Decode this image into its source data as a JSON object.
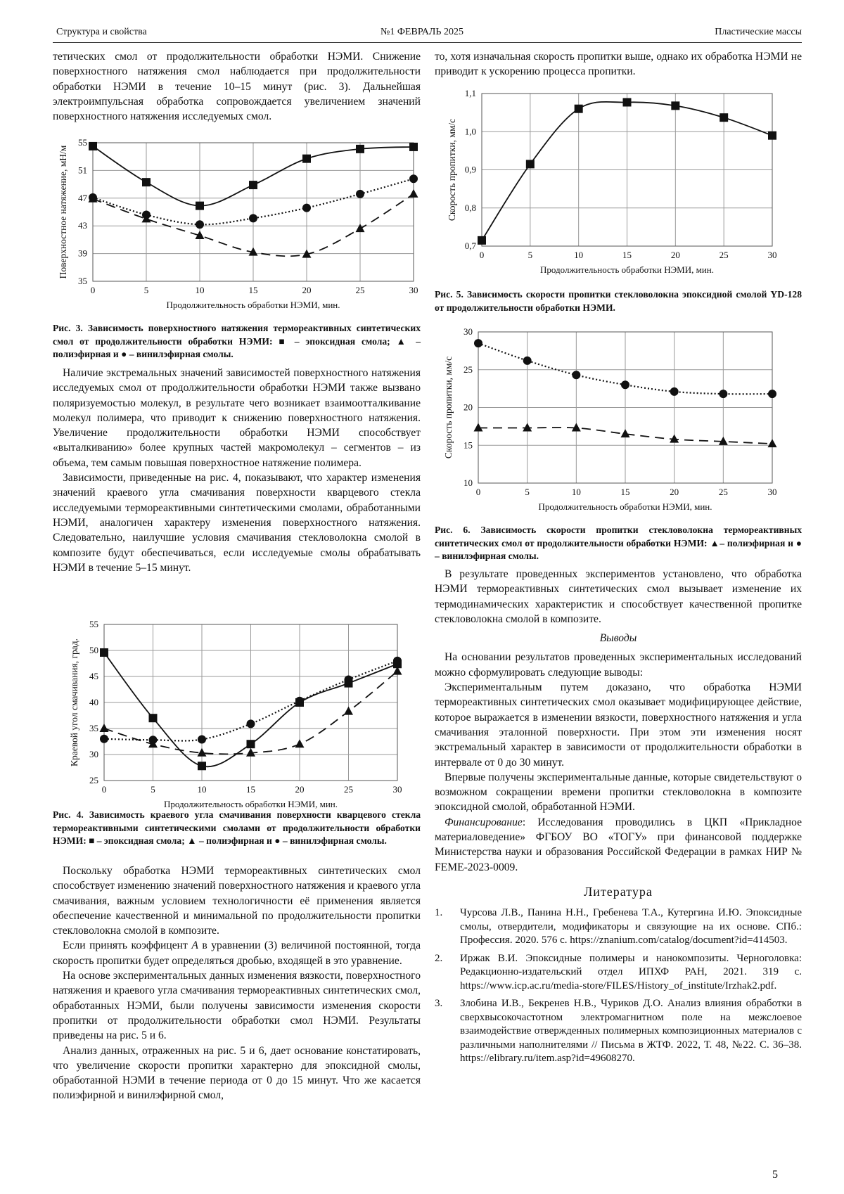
{
  "header": {
    "section": "Структура и свойства",
    "issue": "№1  ФЕВРАЛЬ 2025",
    "journal": "Пластические массы"
  },
  "left_top": "тетических смол от продолжительности обработки НЭМИ. Снижение поверхностного натяжения смол наблюдается при продолжительности обработки НЭМИ в течение 10–15 минут (рис. 3). Дальнейшая электроимпульсная обработка сопровождается увеличением значений поверхностного натяжения исследуемых смол.",
  "left_middle": [
    "Наличие экстремальных значений зависимостей поверхностного натяжения исследуемых смол от продолжительности обработки НЭМИ также вызвано поляризуемостью молекул, в результате чего возникает взаимоотталкивание молекул полимера, что приводит к снижению поверхностного натяжения. Увеличение продолжительности обработки НЭМИ способствует «выталкиванию» более крупных частей макромолекул – сегментов – из объема, тем самым повышая поверхностное натяжение полимера.",
    "Зависимости, приведенные на рис. 4, показывают, что характер изменения значений краевого угла смачивания поверхности кварцевого стекла исследуемыми термореактивными синтетическими смолами, обработанными НЭМИ, аналогичен характеру изменения поверхностного натяжения. Следовательно, наилучшие условия смачивания стекловолокна смолой в композите будут обеспечиваться, если исследуемые смолы обрабатывать НЭМИ в течение 5–15 минут."
  ],
  "left_bottom": {
    "p1": "Поскольку обработка НЭМИ термореактивных синтетических смол способствует изменению значений поверхностного натяжения и краевого угла смачивания, важным условием технологичности её применения является обеспечение качественной и минимальной по продолжительности пропитки стекловолокна смолой в композите.",
    "p2": {
      "before": "Если принять коэффицент ",
      "symbol": "A",
      "after": " в уравнении (3) величиной постоянной, тогда скорость пропитки будет определяться дробью, входящей в это уравнение."
    },
    "p3": "На основе экспериментальных данных изменения вязкости, поверхностного натяжения и краевого угла смачивания термореактивных синтетических смол, обработанных НЭМИ, были получены зависимости изменения скорости пропитки от продолжительности обработки смол НЭМИ. Результаты приведены на рис. 5 и 6.",
    "p4": "Анализ данных, отраженных на рис. 5 и 6, дает основание констатировать, что увеличение скорости пропитки характерно для эпоксидной смолы, обработанной НЭМИ в течение периода от 0 до 15 минут. Что же касается полиэфирной и винилэфирной смол,"
  },
  "right_top": "то, хотя изначальная скорость пропитки выше, однако их обработка НЭМИ не приводит к ускорению процесса пропитки.",
  "right_bottom": {
    "p1": "В результате проведенных экспериментов установлено, что обработка НЭМИ термореактивных синтетических смол вызывает изменение их термодинамических характеристик и способствует качественной пропитке стекловолокна смолой в композите.",
    "conclusions_heading": "Выводы",
    "p2": "На основании результатов проведенных экспериментальных исследований можно сформулировать следующие выводы:",
    "p3": "Экспериментальным путем доказано, что обработка НЭМИ термореактивных синтетических смол оказывает модифицирующее действие, которое выражается в изменении вязкости, поверхностного натяжения и угла смачивания эталонной поверхности. При этом эти изменения носят экстремальный характер в зависимости от продолжительности обработки в интервале от 0 до 30 минут.",
    "p4": "Впервые получены экспериментальные данные, которые свидетельствуют о возможном сокращении времени пропитки стекловолокна в композите эпоксидной смолой, обработанной НЭМИ.",
    "funding": {
      "label": "Финансирование",
      "text": ": Исследования проводились в ЦКП «Прикладное материаловедение» ФГБОУ ВО «ТОГУ» при финансовой поддержке Министерства науки и образования Российской Федерации в рамках НИР № FEME-2023-0009."
    },
    "references_heading": "Литература",
    "references": [
      {
        "number": "1.",
        "text": "Чурсова Л.В., Панина Н.Н., Гребенева Т.А., Кутергина И.Ю. Эпоксидные смолы, отвердители, модификаторы и связующие на их основе. СПб.: Профессия. 2020. 576 с. https://znanium.com/catalog/document?id=414503."
      },
      {
        "number": "2.",
        "text": "Иржак В.И. Эпоксидные полимеры и нанокомпозиты. Черноголовка: Редакционно-издательский отдел ИПХФ РАН, 2021. 319 с. https://www.icp.ac.ru/media-store/FILES/History_of_institute/Irzhak2.pdf."
      },
      {
        "number": "3.",
        "text": "Злобина И.В., Бекренев Н.В., Чуриков Д.О. Анализ влияния обработки в сверхвысокочастотном электромагнитном поле на межслоевое взаимодействие отвержденных полимерных композиционных материалов с различными наполнителями // Письма в ЖТФ. 2022, Т. 48, №22. С. 36–38. https://elibrary.ru/item.asp?id=49608270."
      }
    ]
  },
  "page_number": "5",
  "chart_data": [
    {
      "type": "line",
      "ylabel": "Поверхностное натяжение, мН/м",
      "xlabel": "Продолжительность обработки НЭМИ, мин.",
      "caption": "Рис. 3. Зависимость поверхностного натяжения термореактивных синтетических смол от продолжительности обработки НЭМИ: ■ – эпоксидная смола; ▲ – полиэфирная и ● – винилэфирная смолы.",
      "x": [
        0,
        5,
        10,
        15,
        20,
        25,
        30
      ],
      "xlim": [
        0,
        30
      ],
      "xticks": [
        0,
        5,
        10,
        15,
        20,
        25,
        30
      ],
      "ylim": [
        35,
        55
      ],
      "yticks": [
        35,
        39,
        43,
        47,
        51,
        55
      ],
      "grid": true,
      "series": [
        {
          "marker": "square",
          "line_style": "solid",
          "color": "#111111",
          "values": [
            54.5,
            49.3,
            45.9,
            48.9,
            52.7,
            54.1,
            54.4
          ]
        },
        {
          "marker": "circle",
          "line_style": "dotted",
          "color": "#111111",
          "values": [
            47.1,
            44.6,
            43.2,
            44.1,
            45.6,
            47.6,
            49.8
          ]
        },
        {
          "marker": "triangle",
          "line_style": "dashed",
          "color": "#111111",
          "values": [
            46.9,
            44.0,
            41.6,
            39.2,
            38.9,
            42.6,
            47.6
          ]
        }
      ]
    },
    {
      "type": "line",
      "ylabel": "Краевой угол смачивания, град.",
      "xlabel": "Продолжительность обработки НЭМИ, мин.",
      "caption": "Рис. 4. Зависимость краевого угла смачивания поверхности кварцевого стекла термореактивными синтетическими смолами от продолжительности обработки НЭМИ: ■ – эпоксидная смола; ▲ – полиэфирная и ● – винилэфирная смолы.",
      "x": [
        0,
        5,
        10,
        15,
        20,
        25,
        30
      ],
      "xlim": [
        0,
        30
      ],
      "xticks": [
        0,
        5,
        10,
        15,
        20,
        25,
        30
      ],
      "ylim": [
        25,
        55
      ],
      "yticks": [
        25,
        30,
        35,
        40,
        45,
        50,
        55
      ],
      "grid": true,
      "series": [
        {
          "marker": "square",
          "line_style": "solid",
          "color": "#111111",
          "values": [
            49.6,
            37.0,
            27.8,
            32.0,
            40.0,
            43.7,
            47.4
          ]
        },
        {
          "marker": "circle",
          "line_style": "dotted",
          "color": "#111111",
          "values": [
            33.0,
            32.8,
            32.9,
            35.9,
            40.3,
            44.4,
            48.0
          ]
        },
        {
          "marker": "triangle",
          "line_style": "dashed",
          "color": "#111111",
          "values": [
            35.0,
            32.0,
            30.3,
            30.3,
            32.0,
            38.3,
            46.0
          ]
        }
      ]
    },
    {
      "type": "line",
      "ylabel": "Скорость пропитки, мм/с",
      "xlabel": "Продолжительность обработки НЭМИ, мин.",
      "caption": "Рис. 5. Зависимость скорости пропитки стекловолокна эпоксидной смолой YD-128 от продолжительности обработки НЭМИ.",
      "x": [
        0,
        5,
        10,
        15,
        20,
        25,
        30
      ],
      "xlim": [
        0,
        30
      ],
      "xticks": [
        0,
        5,
        10,
        15,
        20,
        25,
        30
      ],
      "ylim": [
        0.7,
        1.1
      ],
      "yticks": [
        {
          "value": 0.7,
          "label": "0,7"
        },
        {
          "value": 0.8,
          "label": "0,8"
        },
        {
          "value": 0.9,
          "label": "0,9"
        },
        {
          "value": 1.0,
          "label": "1,0"
        },
        {
          "value": 1.1,
          "label": "1,1"
        }
      ],
      "grid": true,
      "series": [
        {
          "marker": "square",
          "line_style": "solid",
          "color": "#111111",
          "values": [
            0.715,
            0.915,
            1.06,
            1.077,
            1.068,
            1.037,
            0.99
          ]
        }
      ]
    },
    {
      "type": "line",
      "ylabel": "Скорость пропитки, мм/с",
      "xlabel": "Продолжительность обработки НЭМИ, мин.",
      "caption": "Рис. 6. Зависимость скорости пропитки стекловолокна термореактивных синтетических смол от продолжительности обработки НЭМИ: ▲– полиэфирная и ● – винилэфирная смолы.",
      "x": [
        0,
        5,
        10,
        15,
        20,
        25,
        30
      ],
      "xlim": [
        0,
        30
      ],
      "xticks": [
        0,
        5,
        10,
        15,
        20,
        25,
        30
      ],
      "ylim": [
        10,
        30
      ],
      "yticks": [
        10,
        15,
        20,
        25,
        30
      ],
      "grid": true,
      "series": [
        {
          "marker": "circle",
          "line_style": "dotted",
          "color": "#111111",
          "values": [
            28.5,
            26.2,
            24.3,
            23.0,
            22.1,
            21.8,
            21.8
          ]
        },
        {
          "marker": "triangle",
          "line_style": "dashed",
          "color": "#111111",
          "values": [
            17.3,
            17.3,
            17.3,
            16.5,
            15.8,
            15.5,
            15.2
          ]
        }
      ]
    }
  ]
}
